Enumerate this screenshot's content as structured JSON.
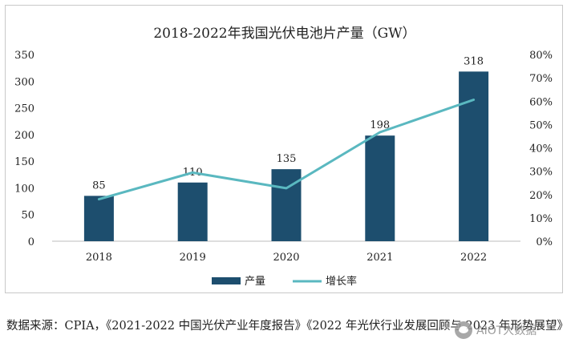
{
  "chart_data": {
    "type": "bar",
    "title": "2018-2022年我国光伏电池片产量（GW）",
    "categories": [
      "2018",
      "2019",
      "2020",
      "2021",
      "2022"
    ],
    "series": [
      {
        "name": "产量",
        "type": "bar",
        "axis": "left",
        "values": [
          85,
          110,
          135,
          198,
          318
        ],
        "color": "#1d4e6e"
      },
      {
        "name": "增长率",
        "type": "line",
        "axis": "right",
        "values": [
          18,
          29.4,
          22.7,
          46.7,
          60.6
        ],
        "color": "#5ab8c0"
      }
    ],
    "data_labels": [
      "85",
      "110",
      "135",
      "198",
      "318"
    ],
    "left_axis": {
      "min": 0,
      "max": 350,
      "step": 50,
      "ticks": [
        "0",
        "50",
        "100",
        "150",
        "200",
        "250",
        "300",
        "350"
      ]
    },
    "right_axis": {
      "min": 0,
      "max": 80,
      "step": 10,
      "ticks": [
        "0%",
        "10%",
        "20%",
        "30%",
        "40%",
        "50%",
        "60%",
        "70%",
        "80%"
      ]
    },
    "grid": false,
    "legend_position": "bottom"
  },
  "source_note": "数据来源：CPIA，《2021-2022 中国光伏产业年度报告》《2022 年光伏行业发展回顾与 2023 年形势展望》",
  "watermark": "AIOT大数据",
  "watermark_icon": "wechat-icon"
}
